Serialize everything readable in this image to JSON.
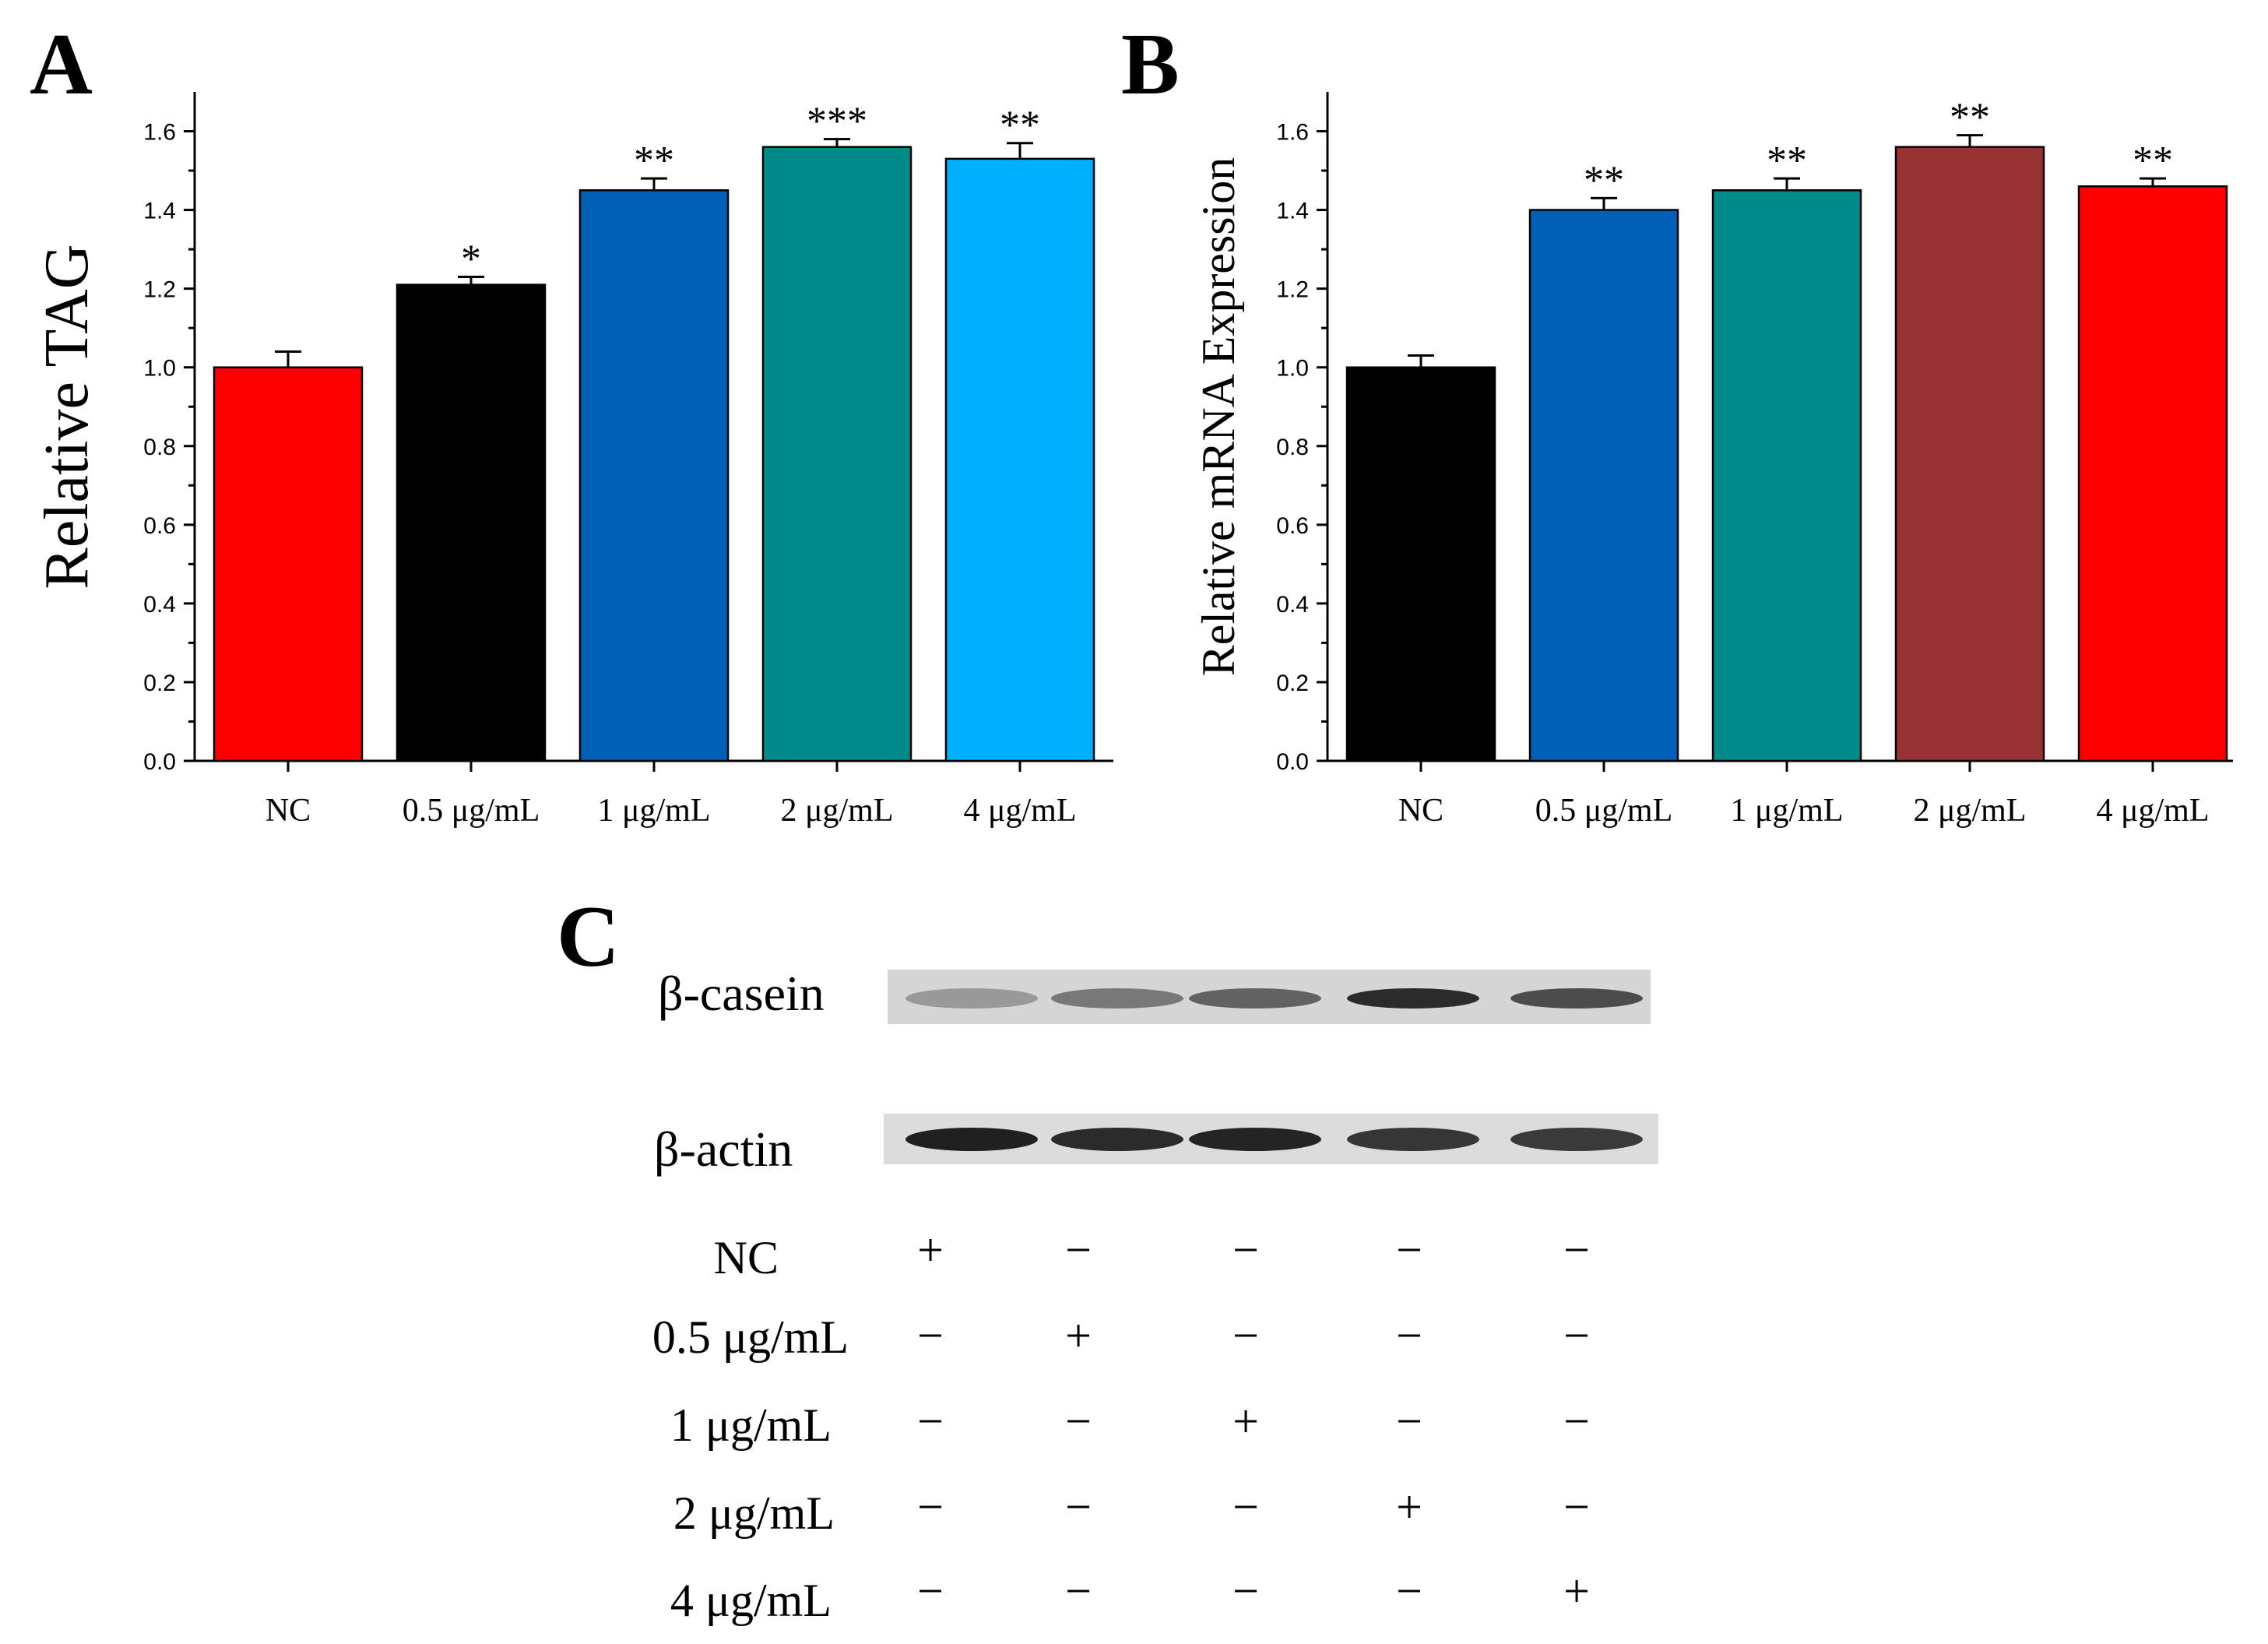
{
  "panels": {
    "a": {
      "letter": "A"
    },
    "b": {
      "letter": "B"
    },
    "c": {
      "letter": "C"
    }
  },
  "chart_data": [
    {
      "type": "bar",
      "panel": "A",
      "title": "",
      "xlabel": "",
      "ylabel": "Relative TAG",
      "ylim": [
        0,
        1.7
      ],
      "yticks": [
        "0.0",
        "0.2",
        "0.4",
        "0.6",
        "0.8",
        "1.0",
        "1.2",
        "1.4",
        "1.6"
      ],
      "categories": [
        "NC",
        "0.5 μg/mL",
        "1 μg/mL",
        "2 μg/mL",
        "4 μg/mL"
      ],
      "values": [
        1.0,
        1.21,
        1.45,
        1.56,
        1.53
      ],
      "errors": [
        0.04,
        0.02,
        0.03,
        0.02,
        0.04
      ],
      "significance": [
        "",
        "*",
        "**",
        "***",
        "**"
      ],
      "colors": [
        "#ff0000",
        "#000000",
        "#0060b8",
        "#008b8b",
        "#00b0ff"
      ]
    },
    {
      "type": "bar",
      "panel": "B",
      "title": "",
      "xlabel": "",
      "ylabel": "Relative mRNA Expression",
      "ylim": [
        0,
        1.7
      ],
      "yticks": [
        "0.0",
        "0.2",
        "0.4",
        "0.6",
        "0.8",
        "1.0",
        "1.2",
        "1.4",
        "1.6"
      ],
      "categories": [
        "NC",
        "0.5 μg/mL",
        "1 μg/mL",
        "2 μg/mL",
        "4 μg/mL"
      ],
      "values": [
        1.0,
        1.4,
        1.45,
        1.56,
        1.46
      ],
      "errors": [
        0.03,
        0.03,
        0.03,
        0.03,
        0.02
      ],
      "significance": [
        "",
        "**",
        "**",
        "**",
        "**"
      ],
      "colors": [
        "#000000",
        "#0060b8",
        "#008b8b",
        "#993333",
        "#ff0000"
      ]
    }
  ],
  "western_blot": {
    "bands": [
      {
        "label": "β-casein",
        "intensities": [
          0.35,
          0.5,
          0.6,
          0.85,
          0.7
        ]
      },
      {
        "label": "β-actin",
        "intensities": [
          0.9,
          0.85,
          0.88,
          0.8,
          0.78
        ]
      }
    ],
    "conditions": [
      {
        "label": "NC",
        "signs": [
          "+",
          "−",
          "−",
          "−",
          "−"
        ]
      },
      {
        "label": "0.5 μg/mL",
        "signs": [
          "−",
          "+",
          "−",
          "−",
          "−"
        ]
      },
      {
        "label": "1 μg/mL",
        "signs": [
          "−",
          "−",
          "+",
          "−",
          "−"
        ]
      },
      {
        "label": "2 μg/mL",
        "signs": [
          "−",
          "−",
          "−",
          "+",
          "−"
        ]
      },
      {
        "label": "4 μg/mL",
        "signs": [
          "−",
          "−",
          "−",
          "−",
          "+"
        ]
      }
    ]
  }
}
